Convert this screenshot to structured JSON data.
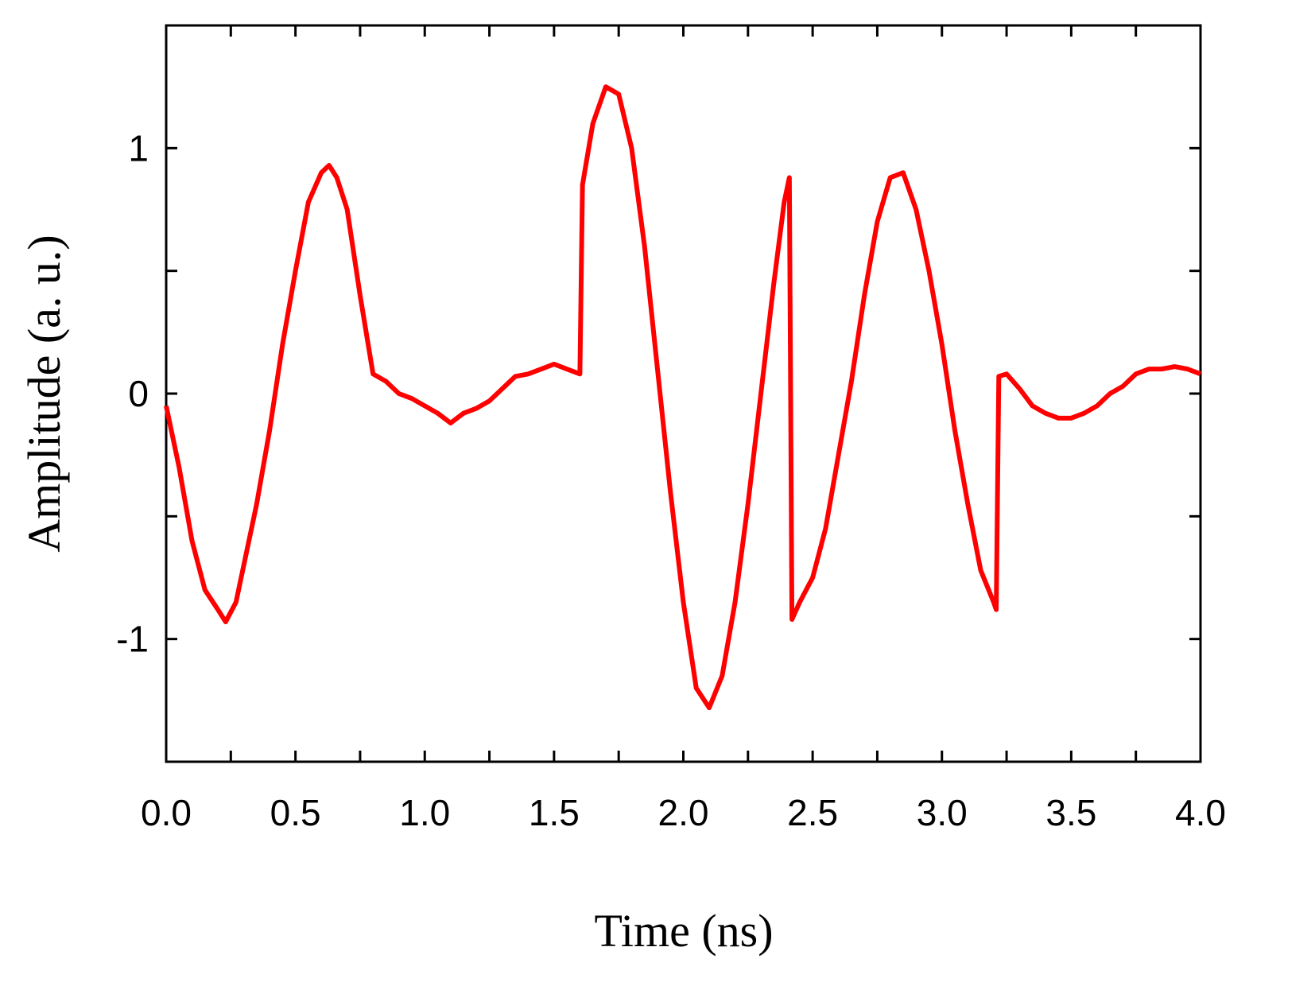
{
  "chart_data": {
    "type": "line",
    "xlabel": "Time (ns)",
    "ylabel": "Amplitude (a. u.)",
    "xlim": [
      0,
      4
    ],
    "ylim": [
      -1.5,
      1.5
    ],
    "xticks": [
      {
        "value": 0,
        "label": "0.0"
      },
      0.5,
      {
        "value": 1,
        "label": "1.0"
      },
      1.5,
      {
        "value": 2,
        "label": "2.0"
      },
      2.5,
      {
        "value": 3,
        "label": "3.0"
      },
      3.5,
      {
        "value": 4,
        "label": "4.0"
      }
    ],
    "yticks": [
      -1,
      0,
      1
    ],
    "xminor_ticks": [
      0.25,
      0.75,
      1.25,
      1.75,
      2.25,
      2.75,
      3.25,
      3.75
    ],
    "yminor_ticks": [
      -0.5,
      0.5
    ],
    "series": [
      {
        "color": "#ff0000",
        "x": [
          0.0,
          0.05,
          0.1,
          0.15,
          0.2,
          0.23,
          0.27,
          0.3,
          0.35,
          0.4,
          0.45,
          0.5,
          0.55,
          0.6,
          0.63,
          0.66,
          0.7,
          0.75,
          0.8,
          0.85,
          0.9,
          0.95,
          1.0,
          1.05,
          1.1,
          1.15,
          1.2,
          1.25,
          1.3,
          1.35,
          1.4,
          1.45,
          1.5,
          1.55,
          1.6,
          1.61,
          1.65,
          1.7,
          1.75,
          1.8,
          1.85,
          1.9,
          1.95,
          2.0,
          2.05,
          2.1,
          2.15,
          2.2,
          2.25,
          2.3,
          2.35,
          2.39,
          2.41,
          2.42,
          2.45,
          2.5,
          2.55,
          2.6,
          2.65,
          2.7,
          2.75,
          2.8,
          2.85,
          2.9,
          2.95,
          3.0,
          3.05,
          3.1,
          3.15,
          3.2,
          3.21,
          3.22,
          3.25,
          3.3,
          3.35,
          3.4,
          3.45,
          3.5,
          3.55,
          3.6,
          3.65,
          3.7,
          3.75,
          3.8,
          3.85,
          3.9,
          3.95,
          4.0
        ],
        "values": [
          -0.05,
          -0.3,
          -0.6,
          -0.8,
          -0.88,
          -0.93,
          -0.85,
          -0.7,
          -0.45,
          -0.15,
          0.2,
          0.5,
          0.78,
          0.9,
          0.93,
          0.88,
          0.75,
          0.4,
          0.08,
          0.05,
          0.0,
          -0.02,
          -0.05,
          -0.08,
          -0.12,
          -0.08,
          -0.06,
          -0.03,
          0.02,
          0.07,
          0.08,
          0.1,
          0.12,
          0.1,
          0.08,
          0.85,
          1.1,
          1.25,
          1.22,
          1.0,
          0.6,
          0.1,
          -0.4,
          -0.85,
          -1.2,
          -1.28,
          -1.15,
          -0.85,
          -0.45,
          0.0,
          0.45,
          0.78,
          0.88,
          -0.92,
          -0.85,
          -0.75,
          -0.55,
          -0.25,
          0.05,
          0.4,
          0.7,
          0.88,
          0.9,
          0.75,
          0.5,
          0.2,
          -0.15,
          -0.45,
          -0.72,
          -0.85,
          -0.88,
          0.07,
          0.08,
          0.02,
          -0.05,
          -0.08,
          -0.1,
          -0.1,
          -0.08,
          -0.05,
          0.0,
          0.03,
          0.08,
          0.1,
          0.1,
          0.11,
          0.1,
          0.08
        ]
      }
    ]
  }
}
